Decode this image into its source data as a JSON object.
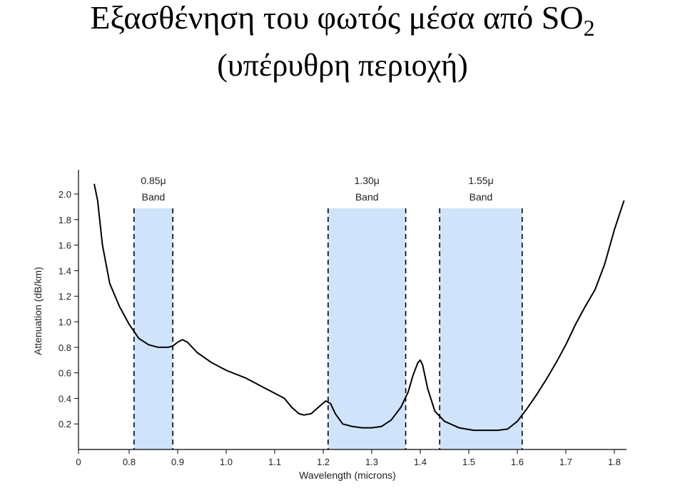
{
  "slide": {
    "title_main": "Εξασθένηση του φωτός μέσα από SO",
    "title_sub": "2",
    "subtitle": "(υπέρυθρη περιοχή)"
  },
  "chart_data": {
    "type": "line",
    "title": "",
    "xlabel": "Wavelength (microns)",
    "ylabel": "Attenuation (dB/km)",
    "x_ticks": [
      "0",
      "0.8",
      "0.9",
      "1.0",
      "1.1",
      "1.2",
      "1.3",
      "1.4",
      "1.5",
      "1.6",
      "1.7",
      "1.8"
    ],
    "y_ticks": [
      "0.2",
      "0.4",
      "0.6",
      "0.8",
      "1.0",
      "1.2",
      "1.4",
      "1.6",
      "1.8",
      "2.0"
    ],
    "xlim": [
      0.7,
      1.85
    ],
    "ylim": [
      0,
      2.2
    ],
    "grid": false,
    "bands": [
      {
        "label_line1": "0.85μ",
        "label_line2": "Band",
        "x_start": 0.81,
        "x_end": 0.89
      },
      {
        "label_line1": "1.30μ",
        "label_line2": "Band",
        "x_start": 1.21,
        "x_end": 1.37
      },
      {
        "label_line1": "1.55μ",
        "label_line2": "Band",
        "x_start": 1.44,
        "x_end": 1.61
      }
    ],
    "band_color": "#cfe3fb",
    "series": [
      {
        "x": [
          0.728,
          0.735,
          0.745,
          0.76,
          0.78,
          0.8,
          0.82,
          0.84,
          0.86,
          0.88,
          0.89,
          0.9,
          0.91,
          0.92,
          0.94,
          0.97,
          1.0,
          1.04,
          1.08,
          1.12,
          1.135,
          1.15,
          1.16,
          1.175,
          1.19,
          1.205,
          1.215,
          1.225,
          1.24,
          1.26,
          1.28,
          1.3,
          1.32,
          1.34,
          1.36,
          1.375,
          1.385,
          1.395,
          1.4,
          1.405,
          1.415,
          1.43,
          1.45,
          1.48,
          1.51,
          1.54,
          1.56,
          1.58,
          1.6,
          1.62,
          1.64,
          1.66,
          1.68,
          1.7,
          1.72,
          1.74,
          1.76,
          1.78,
          1.8,
          1.82
        ],
        "y": [
          2.08,
          1.95,
          1.6,
          1.3,
          1.12,
          0.98,
          0.87,
          0.82,
          0.8,
          0.8,
          0.81,
          0.84,
          0.86,
          0.84,
          0.76,
          0.68,
          0.62,
          0.56,
          0.48,
          0.4,
          0.33,
          0.28,
          0.27,
          0.28,
          0.33,
          0.38,
          0.36,
          0.28,
          0.2,
          0.18,
          0.17,
          0.17,
          0.18,
          0.23,
          0.33,
          0.45,
          0.58,
          0.68,
          0.7,
          0.66,
          0.48,
          0.3,
          0.22,
          0.17,
          0.15,
          0.15,
          0.15,
          0.16,
          0.22,
          0.32,
          0.43,
          0.55,
          0.68,
          0.82,
          0.98,
          1.12,
          1.25,
          1.45,
          1.72,
          1.95
        ]
      }
    ]
  }
}
